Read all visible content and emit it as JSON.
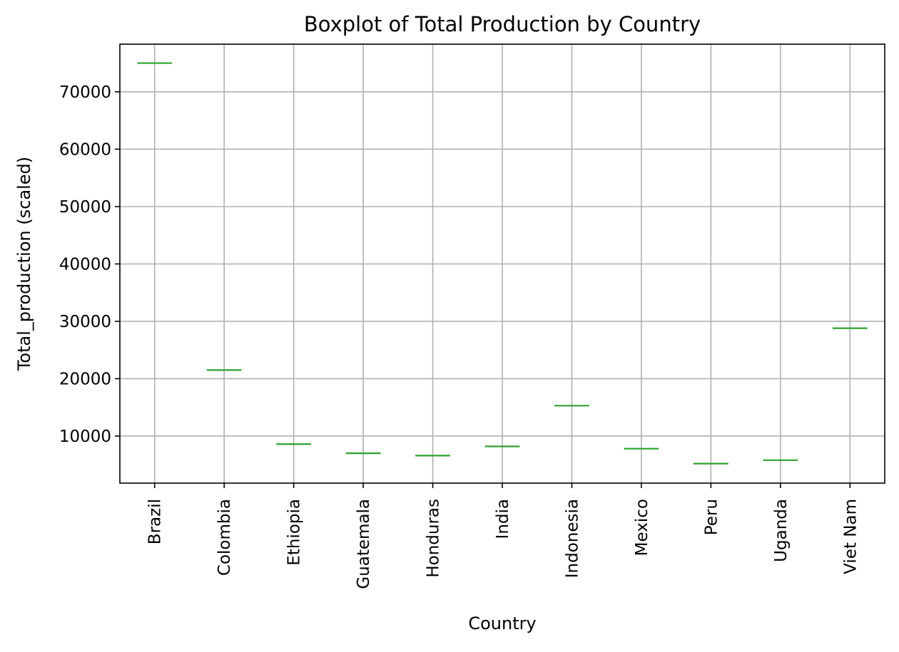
{
  "chart_data": {
    "type": "box",
    "title": "Boxplot of Total Production by Country",
    "xlabel": "Country",
    "ylabel": "Total_production (scaled)",
    "categories": [
      "Brazil",
      "Colombia",
      "Ethiopia",
      "Guatemala",
      "Honduras",
      "India",
      "Indonesia",
      "Mexico",
      "Peru",
      "Uganda",
      "Viet Nam"
    ],
    "values": [
      75000,
      21500,
      8600,
      7000,
      6600,
      8200,
      15300,
      7800,
      5200,
      5800,
      28800
    ],
    "yticks": [
      10000,
      20000,
      30000,
      40000,
      50000,
      60000,
      70000
    ],
    "ylim": [
      1800,
      78300
    ],
    "grid": true,
    "median_color": "#2ca02c",
    "grid_color": "#b0b0b0",
    "axis_color": "#000000"
  }
}
